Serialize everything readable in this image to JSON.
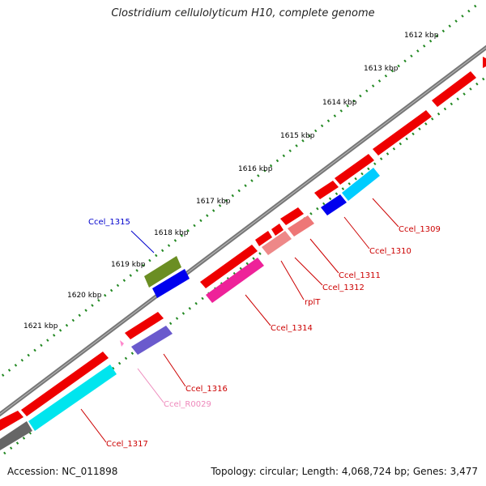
{
  "title": "Clostridium cellulolyticum H10, complete genome",
  "footer": {
    "accession": "Accession: NC_011898",
    "summary": "Topology: circular; Length: 4,068,724 bp; Genes: 3,477"
  },
  "ticks": [
    "1612 kbp",
    "1613 kbp",
    "1614 kbp",
    "1615 kbp",
    "1616 kbp",
    "1617 kbp",
    "1618 kbp",
    "1619 kbp",
    "1620 kbp",
    "1621 kbp"
  ],
  "genes": [
    "Ccel_1309",
    "Ccel_1310",
    "Ccel_1311",
    "Ccel_1312",
    "rplT",
    "Ccel_1314",
    "Ccel_1315",
    "Ccel_1316",
    "Ccel_R0029",
    "Ccel_1317"
  ],
  "colors": {
    "forward_cds": "#ff0000",
    "cog_cyan": "#00ccff",
    "cog_blue": "#0000ee",
    "cog_salmon": "#ee7777",
    "cog_magenta": "#ee2299",
    "cog_olive": "#6b8e23",
    "cog_purple": "#6a5acd",
    "cog_teal": "#00e5ee",
    "cog_gray": "#666666",
    "rna_pink": "#ff88cc",
    "backbone": "#777777",
    "tick_dots": "#228822",
    "label_red": "#cc0000",
    "label_blue": "#0000cc",
    "label_pink": "#ee88bb"
  }
}
